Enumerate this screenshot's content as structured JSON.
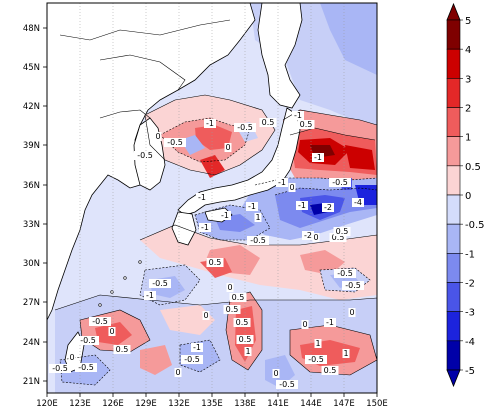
{
  "map": {
    "lat_ticks": [
      "48N",
      "45N",
      "42N",
      "39N",
      "36N",
      "33N",
      "30N",
      "27N",
      "24N",
      "21N"
    ],
    "lon_ticks": [
      "120E",
      "123E",
      "126E",
      "129E",
      "132E",
      "135E",
      "138E",
      "141E",
      "144E",
      "147E",
      "150E"
    ]
  },
  "contour_labels": [
    {
      "text": "-0.5"
    },
    {
      "text": "0"
    },
    {
      "text": "-0.5"
    },
    {
      "text": "-0.5"
    },
    {
      "text": "0"
    },
    {
      "text": "0.5"
    },
    {
      "text": "-0.5"
    },
    {
      "text": "0"
    },
    {
      "text": "-0.5"
    },
    {
      "text": "-1"
    },
    {
      "text": "-0.5"
    },
    {
      "text": "0"
    },
    {
      "text": "0.5"
    },
    {
      "text": "-1"
    },
    {
      "text": "0.5"
    },
    {
      "text": "-1"
    },
    {
      "text": "-4"
    },
    {
      "text": "-2"
    },
    {
      "text": "-1"
    },
    {
      "text": "1"
    },
    {
      "text": "-1"
    },
    {
      "text": "-2"
    },
    {
      "text": "-0.5"
    },
    {
      "text": "-1"
    },
    {
      "text": "-1"
    },
    {
      "text": "-0.5"
    },
    {
      "text": "0"
    },
    {
      "text": "0.5"
    },
    {
      "text": "0"
    },
    {
      "text": "0"
    },
    {
      "text": "-0.5"
    },
    {
      "text": "-1"
    },
    {
      "text": "0.5"
    },
    {
      "text": "0"
    },
    {
      "text": "-0.5"
    },
    {
      "text": "-0.5"
    },
    {
      "text": "-1"
    },
    {
      "text": "0"
    },
    {
      "text": "0.5"
    },
    {
      "text": "0.5"
    },
    {
      "text": "0.5"
    },
    {
      "text": "0.5"
    },
    {
      "text": "1"
    },
    {
      "text": "-1"
    },
    {
      "text": "-0.5"
    },
    {
      "text": "1"
    },
    {
      "text": "-0.5"
    },
    {
      "text": "0"
    },
    {
      "text": "1"
    },
    {
      "text": "0"
    },
    {
      "text": "0.5"
    },
    {
      "text": "-0.5"
    },
    {
      "text": "0"
    },
    {
      "text": "-0.5"
    },
    {
      "text": "-1"
    },
    {
      "text": "-1"
    },
    {
      "text": "0.5"
    }
  ],
  "colorbar": {
    "labels": [
      "5",
      "4",
      "3",
      "2",
      "1",
      "0.5",
      "0",
      "-0.5",
      "-1",
      "-2",
      "-3",
      "-4",
      "-5"
    ],
    "colors": [
      "#7f0000",
      "#cc0000",
      "#e32828",
      "#ef5c5c",
      "#f59a9a",
      "#fbd4d4",
      "#ffffff",
      "#d4dcfb",
      "#a9b6f5",
      "#7c8aef",
      "#4a55e8",
      "#1c23dd",
      "#0000a8"
    ]
  }
}
